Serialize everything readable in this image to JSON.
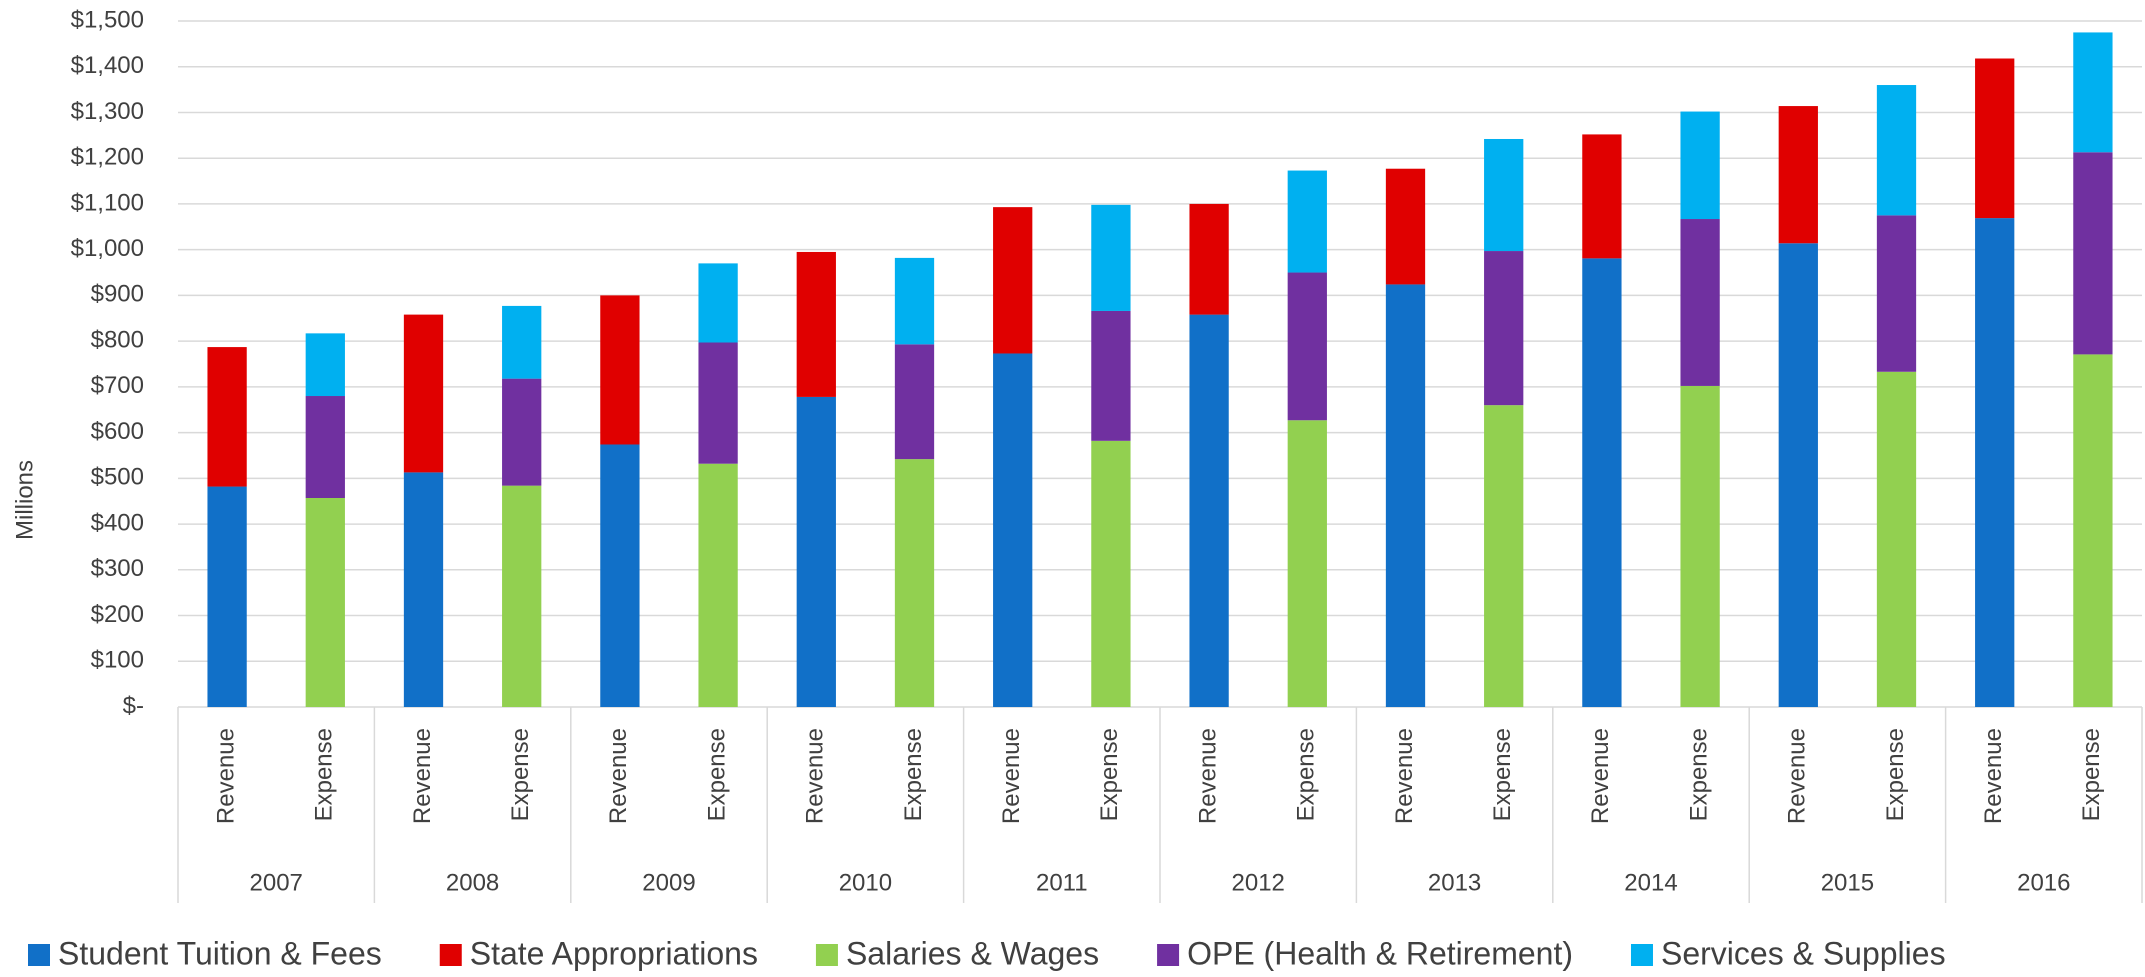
{
  "chart_data": {
    "type": "stacked_bar",
    "y_label": "Millions",
    "categories": [
      "Revenue",
      "Expense",
      "Revenue",
      "Expense",
      "Revenue",
      "Expense",
      "Revenue",
      "Expense",
      "Revenue",
      "Expense",
      "Revenue",
      "Expense",
      "Revenue",
      "Expense",
      "Revenue",
      "Expense",
      "Revenue",
      "Expense",
      "Revenue",
      "Expense"
    ],
    "groups": [
      "2007",
      "2008",
      "2009",
      "2010",
      "2011",
      "2012",
      "2013",
      "2014",
      "2015",
      "2016"
    ],
    "series": [
      {
        "name": "Student Tuition & Fees",
        "color": "#1170c8",
        "values": [
          482,
          null,
          513,
          null,
          574,
          null,
          678,
          null,
          773,
          null,
          858,
          null,
          924,
          null,
          981,
          null,
          1014,
          null,
          1069,
          null
        ]
      },
      {
        "name": "State Appropriations",
        "color": "#e00000",
        "values": [
          305,
          null,
          345,
          null,
          326,
          null,
          317,
          null,
          320,
          null,
          242,
          null,
          253,
          null,
          271,
          null,
          300,
          null,
          349,
          null
        ]
      },
      {
        "name": "Salaries & Wages",
        "color": "#92d050",
        "values": [
          null,
          457,
          null,
          484,
          null,
          532,
          null,
          542,
          null,
          582,
          null,
          627,
          null,
          660,
          null,
          702,
          null,
          733,
          null,
          771
        ]
      },
      {
        "name": "OPE (Health & Retirement)",
        "color": "#7030a0",
        "values": [
          null,
          223,
          null,
          234,
          null,
          265,
          null,
          251,
          null,
          284,
          null,
          323,
          null,
          337,
          null,
          365,
          null,
          342,
          null,
          442
        ]
      },
      {
        "name": "Services & Supplies",
        "color": "#00b0f0",
        "values": [
          null,
          137,
          null,
          159,
          null,
          173,
          null,
          189,
          null,
          232,
          null,
          223,
          null,
          245,
          null,
          235,
          null,
          285,
          null,
          262
        ]
      }
    ],
    "ylim": [
      0,
      1500
    ],
    "yticks": [
      {
        "value": 0,
        "label": "$-"
      },
      {
        "value": 100,
        "label": "$100"
      },
      {
        "value": 200,
        "label": "$200"
      },
      {
        "value": 300,
        "label": "$300"
      },
      {
        "value": 400,
        "label": "$400"
      },
      {
        "value": 500,
        "label": "$500"
      },
      {
        "value": 600,
        "label": "$600"
      },
      {
        "value": 700,
        "label": "$700"
      },
      {
        "value": 800,
        "label": "$800"
      },
      {
        "value": 900,
        "label": "$900"
      },
      {
        "value": 1000,
        "label": "$1,000"
      },
      {
        "value": 1100,
        "label": "$1,100"
      },
      {
        "value": 1200,
        "label": "$1,200"
      },
      {
        "value": 1300,
        "label": "$1,300"
      },
      {
        "value": 1400,
        "label": "$1,400"
      },
      {
        "value": 1500,
        "label": "$1,500"
      }
    ],
    "grid": true,
    "legend": "bottom"
  }
}
